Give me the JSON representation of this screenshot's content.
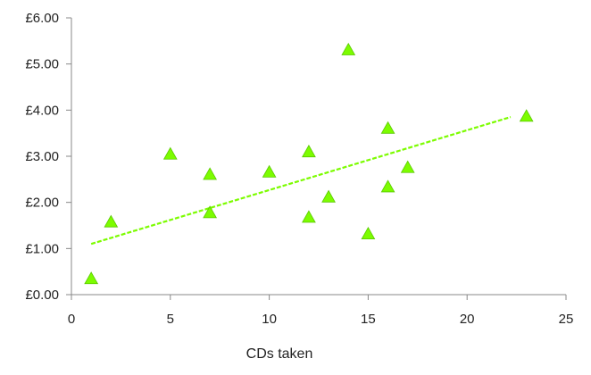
{
  "chart_data": {
    "type": "scatter",
    "title": "",
    "xlabel": "CDs taken",
    "ylabel": "",
    "xlim": [
      0,
      25
    ],
    "ylim": [
      0,
      6
    ],
    "x_ticks": [
      "0",
      "5",
      "10",
      "15",
      "20",
      "25"
    ],
    "y_ticks": [
      "£0.00",
      "£1.00",
      "£2.00",
      "£3.00",
      "£4.00",
      "£5.00",
      "£6.00"
    ],
    "grid": false,
    "legend": "none",
    "marker": "triangle",
    "marker_color": "#7cfc00",
    "series": [
      {
        "points": [
          {
            "x": 1,
            "y": 0.33
          },
          {
            "x": 2,
            "y": 1.56
          },
          {
            "x": 5,
            "y": 3.03
          },
          {
            "x": 7,
            "y": 2.59
          },
          {
            "x": 7,
            "y": 1.76
          },
          {
            "x": 10,
            "y": 2.64
          },
          {
            "x": 12,
            "y": 3.08
          },
          {
            "x": 12,
            "y": 1.66
          },
          {
            "x": 13,
            "y": 2.1
          },
          {
            "x": 14,
            "y": 5.29
          },
          {
            "x": 15,
            "y": 1.3
          },
          {
            "x": 16,
            "y": 3.59
          },
          {
            "x": 16,
            "y": 2.32
          },
          {
            "x": 17,
            "y": 2.74
          },
          {
            "x": 23,
            "y": 3.85
          }
        ]
      }
    ],
    "trendline": {
      "style": "dashed",
      "color": "#7cfc00",
      "start": {
        "x": 1,
        "y": 1.1
      },
      "end": {
        "x": 22.2,
        "y": 3.85
      }
    }
  }
}
